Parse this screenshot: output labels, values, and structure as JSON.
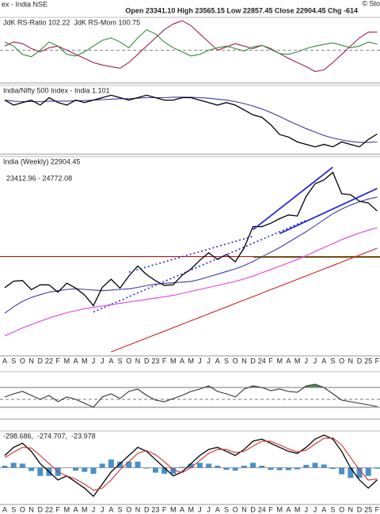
{
  "header": {
    "title": "ex - India NSE",
    "quote": "Open 23341.10 High 23565.15 Low 22857.45 Close 22904.45 Chg -614",
    "credit": "© Sto"
  },
  "chart_data": [
    {
      "type": "line",
      "ylim": [
        96,
        104
      ],
      "hlines": [
        {
          "value": 100,
          "color": "#888888",
          "dash": true
        }
      ],
      "series": [
        {
          "name": "JdK RS-Ratio 102.22",
          "color": "#a0204f",
          "values": [
            100.5,
            101,
            100.8,
            100.2,
            99.8,
            100.3,
            100.5,
            100,
            99.5,
            99,
            98.5,
            98.2,
            98,
            97.8,
            98.5,
            99.5,
            100.5,
            101.5,
            102.5,
            103.2,
            103.6,
            103,
            102,
            101,
            100,
            100.4,
            100.8,
            100.5,
            100.2,
            100.6,
            100.2,
            99.6,
            99,
            98.5,
            98,
            97.4,
            97.6,
            98.5,
            99.5,
            100.5,
            101.5,
            102.2,
            102.22
          ]
        },
        {
          "name": "JdK RS-Mom 100.75",
          "color": "#2e8b3e",
          "values": [
            101,
            100.5,
            99.5,
            99.2,
            100,
            101,
            100.5,
            99.5,
            99.3,
            99.8,
            100.5,
            101.2,
            101.5,
            101,
            100.3,
            101.5,
            102.5,
            102,
            101,
            100.3,
            99.8,
            99.3,
            99.5,
            100,
            100.3,
            100.5,
            100.2,
            99.9,
            100.4,
            100.6,
            100.1,
            99.6,
            99.5,
            99.8,
            100.2,
            100.5,
            100.7,
            100.9,
            100.6,
            100.3,
            100.5,
            101,
            100.75
          ]
        }
      ]
    },
    {
      "type": "line",
      "title": "India/Nifty 500 Index - India 1.101",
      "ylim": [
        1.06,
        1.2
      ],
      "series": [
        {
          "color": "#3a3aa0",
          "values": [
            1.17,
            1.168,
            1.167,
            1.167,
            1.167,
            1.168,
            1.168,
            1.168,
            1.169,
            1.169,
            1.17,
            1.171,
            1.172,
            1.173,
            1.173,
            1.174,
            1.175,
            1.175,
            1.175,
            1.176,
            1.176,
            1.176,
            1.175,
            1.174,
            1.172,
            1.17,
            1.167,
            1.163,
            1.158,
            1.152,
            1.145,
            1.137,
            1.128,
            1.12,
            1.112,
            1.105,
            1.098,
            1.093,
            1.089,
            1.086,
            1.084,
            1.084,
            1.085
          ]
        },
        {
          "color": "#000000",
          "values": [
            1.17,
            1.16,
            1.165,
            1.17,
            1.16,
            1.175,
            1.165,
            1.16,
            1.17,
            1.165,
            1.17,
            1.175,
            1.18,
            1.175,
            1.17,
            1.175,
            1.18,
            1.175,
            1.17,
            1.17,
            1.175,
            1.175,
            1.17,
            1.165,
            1.16,
            1.165,
            1.16,
            1.15,
            1.14,
            1.135,
            1.12,
            1.1,
            1.095,
            1.085,
            1.08,
            1.075,
            1.08,
            1.075,
            1.085,
            1.08,
            1.075,
            1.09,
            1.101
          ]
        }
      ]
    },
    {
      "type": "line",
      "title": "India (Weekly) 22904.45",
      "subtitle": "23412.96 - 24772.08",
      "ylim": [
        12000,
        27000
      ],
      "categories": [
        "A",
        "S",
        "O",
        "N",
        "D",
        "22",
        "F",
        "M",
        "A",
        "M",
        "J",
        "J",
        "A",
        "S",
        "O",
        "N",
        "D",
        "23",
        "F",
        "M",
        "A",
        "M",
        "J",
        "J",
        "A",
        "S",
        "O",
        "N",
        "D",
        "24",
        "F",
        "M",
        "A",
        "M",
        "J",
        "J",
        "A",
        "S",
        "O",
        "N",
        "D",
        "25",
        "F"
      ],
      "hlines": [
        {
          "value": 19470,
          "color": "#cc0000"
        },
        {
          "value": 19410,
          "color": "#1a9a1a",
          "from": 28
        }
      ],
      "trendlines": [
        {
          "from": [
            10,
            15300
          ],
          "to": [
            34,
            22200
          ],
          "color": "#2b2bd0",
          "dash": true
        },
        {
          "from": [
            14,
            18300
          ],
          "to": [
            28,
            21000
          ],
          "color": "#2b2bd0",
          "dash": true
        },
        {
          "from": [
            28,
            21500
          ],
          "to": [
            37,
            26200
          ],
          "color": "#2b2bd0"
        },
        {
          "from": [
            31,
            21200
          ],
          "to": [
            42,
            24600
          ],
          "color": "#2b2bd0"
        }
      ],
      "series": [
        {
          "color": "#cc2222",
          "values": [
            null,
            null,
            null,
            null,
            null,
            null,
            null,
            null,
            null,
            null,
            null,
            null,
            12300,
            12560,
            12820,
            13080,
            13340,
            13600,
            13860,
            14120,
            14380,
            14640,
            14900,
            15160,
            15420,
            15680,
            15940,
            16200,
            16460,
            16720,
            16980,
            17240,
            17500,
            17760,
            18020,
            18280,
            18540,
            18800,
            19060,
            19320,
            19580,
            19840,
            20100
          ]
        },
        {
          "color": "#e040e0",
          "values": [
            13500,
            13800,
            14100,
            14350,
            14600,
            14850,
            15050,
            15250,
            15400,
            15550,
            15650,
            15750,
            15850,
            15950,
            16050,
            16150,
            16250,
            16350,
            16450,
            16550,
            16700,
            16850,
            17000,
            17150,
            17300,
            17450,
            17600,
            17800,
            18000,
            18250,
            18500,
            18750,
            19000,
            19250,
            19550,
            19850,
            20150,
            20450,
            20750,
            21000,
            21250,
            21450,
            21650
          ]
        },
        {
          "color": "#3c3ca8",
          "values": [
            15200,
            15700,
            16100,
            16400,
            16600,
            16800,
            16900,
            17000,
            17050,
            17000,
            16950,
            16900,
            16950,
            17000,
            17050,
            17150,
            17300,
            17400,
            17450,
            17500,
            17550,
            17600,
            17750,
            17950,
            18150,
            18350,
            18550,
            18800,
            19100,
            19450,
            19800,
            20150,
            20550,
            20950,
            21350,
            21800,
            22250,
            22700,
            23050,
            23350,
            23600,
            23800,
            23950
          ]
        },
        {
          "color": "#000000",
          "values": [
            17132,
            17618,
            17671,
            16983,
            17354,
            17340,
            16794,
            17465,
            17103,
            16585,
            15780,
            17158,
            17759,
            17094,
            18012,
            18758,
            18105,
            17662,
            17304,
            17360,
            18065,
            18534,
            19189,
            19754,
            19254,
            19638,
            19080,
            20133,
            21731,
            21726,
            21983,
            22327,
            22605,
            22531,
            24011,
            24951,
            25236,
            25811,
            24205,
            24131,
            23645,
            23508,
            22905
          ]
        }
      ]
    },
    {
      "type": "line",
      "ylim": [
        20,
        80
      ],
      "fill_above": {
        "value": 60,
        "color": "#5b8c5a"
      },
      "hlines": [
        {
          "value": 60,
          "color": "#777777"
        },
        {
          "value": 45,
          "color": "#777777",
          "dash": true
        },
        {
          "value": 35,
          "color": "#777777"
        }
      ],
      "series": [
        {
          "color": "#333333",
          "values": [
            48,
            52,
            55,
            50,
            45,
            50,
            42,
            48,
            45,
            40,
            35,
            48,
            52,
            46,
            55,
            58,
            50,
            44,
            42,
            46,
            50,
            55,
            58,
            62,
            55,
            52,
            48,
            58,
            62,
            60,
            56,
            58,
            55,
            54,
            62,
            64,
            60,
            52,
            44,
            42,
            40,
            38,
            36
          ]
        }
      ]
    },
    {
      "type": "line",
      "ylim": [
        -900,
        900
      ],
      "categories": [
        "A",
        "S",
        "O",
        "N",
        "D",
        "22",
        "F",
        "M",
        "A",
        "M",
        "J",
        "J",
        "A",
        "S",
        "O",
        "N",
        "D",
        "23",
        "F",
        "M",
        "A",
        "M",
        "J",
        "J",
        "A",
        "S",
        "O",
        "N",
        "D",
        "24",
        "F",
        "M",
        "A",
        "M",
        "J",
        "J",
        "A",
        "S",
        "O",
        "N",
        "D",
        "25",
        "F"
      ],
      "hlines": [
        {
          "value": 0,
          "color": "#999999"
        }
      ],
      "series": [
        {
          "name": "-23.978",
          "color": "#4a8fc8",
          "style": "bars",
          "values": [
            50,
            120,
            100,
            -80,
            -200,
            -200,
            -200,
            0,
            -70,
            -100,
            -150,
            100,
            200,
            150,
            150,
            150,
            -20,
            -120,
            -150,
            -150,
            20,
            100,
            120,
            100,
            50,
            -50,
            -70,
            50,
            120,
            50,
            -50,
            -60,
            -60,
            -40,
            70,
            120,
            80,
            -30,
            -160,
            -250,
            -250,
            -200,
            -24
          ]
        },
        {
          "name": "-298.686,",
          "color": "#000000",
          "values": [
            300,
            500,
            600,
            400,
            100,
            -100,
            -300,
            -200,
            -350,
            -500,
            -700,
            -400,
            -100,
            100,
            300,
            500,
            400,
            200,
            0,
            -200,
            -100,
            100,
            300,
            450,
            500,
            400,
            300,
            450,
            650,
            700,
            600,
            500,
            400,
            350,
            500,
            700,
            800,
            700,
            400,
            0,
            -300,
            -500,
            -299
          ]
        },
        {
          "name": "-274.707,",
          "color": "#d03030",
          "values": [
            250,
            380,
            500,
            480,
            300,
            100,
            -100,
            -200,
            -280,
            -400,
            -550,
            -500,
            -300,
            -50,
            150,
            350,
            420,
            320,
            150,
            -50,
            -120,
            0,
            180,
            350,
            450,
            450,
            370,
            400,
            530,
            650,
            650,
            560,
            460,
            390,
            430,
            580,
            720,
            730,
            560,
            250,
            -50,
            -300,
            -275
          ]
        }
      ]
    }
  ]
}
